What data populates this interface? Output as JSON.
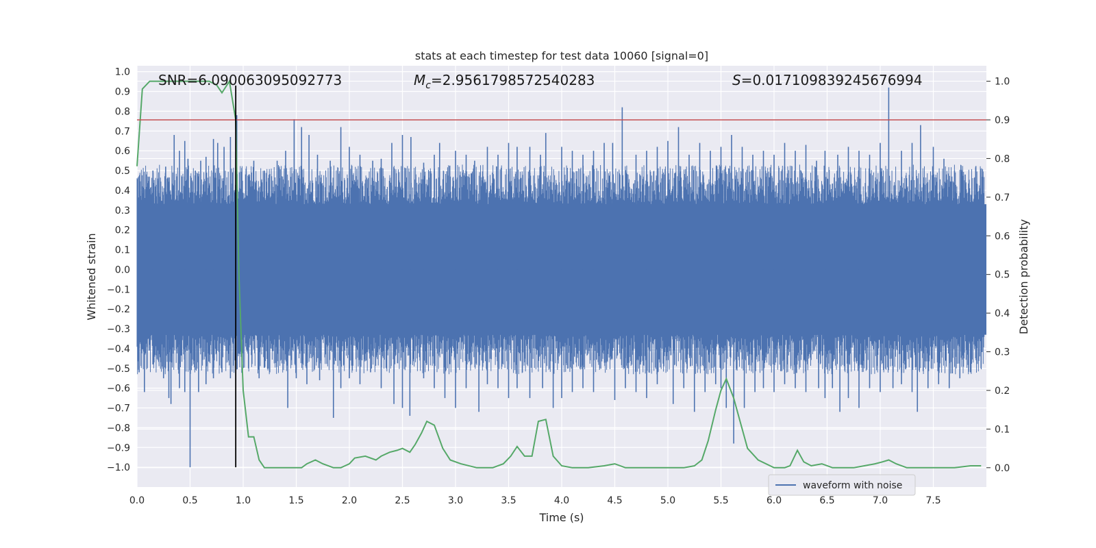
{
  "chart_data": {
    "type": "line",
    "title": "stats at each timestep for test data 10060 [signal=0]",
    "xlabel": "Time (s)",
    "ylabel_left": "Whitened strain",
    "ylabel_right": "Detection probability",
    "xlim": [
      0.0,
      8.0
    ],
    "ylim_left": [
      -1.1,
      1.03
    ],
    "ylim_right": [
      -0.05,
      1.04
    ],
    "x_ticks": [
      0.0,
      0.5,
      1.0,
      1.5,
      2.0,
      2.5,
      3.0,
      3.5,
      4.0,
      4.5,
      5.0,
      5.5,
      6.0,
      6.5,
      7.0,
      7.5
    ],
    "x_tick_labels": [
      "0.0",
      "0.5",
      "1.0",
      "1.5",
      "2.0",
      "2.5",
      "3.0",
      "3.5",
      "4.0",
      "4.5",
      "5.0",
      "5.5",
      "6.0",
      "6.5",
      "7.0",
      "7.5"
    ],
    "y_left_ticks": [
      1.0,
      0.9,
      0.8,
      0.7,
      0.6,
      0.5,
      0.4,
      0.3,
      0.2,
      0.1,
      0.0,
      -0.1,
      -0.2,
      -0.3,
      -0.4,
      -0.5,
      -0.6,
      -0.7,
      -0.8,
      -0.9,
      -1.0
    ],
    "y_left_tick_labels": [
      "1.0",
      "0.9",
      "0.8",
      "0.7",
      "0.6",
      "0.5",
      "0.4",
      "0.3",
      "0.2",
      "0.1",
      "0.0",
      "−0.1",
      "−0.2",
      "−0.3",
      "−0.4",
      "−0.5",
      "−0.6",
      "−0.7",
      "−0.8",
      "−0.9",
      "−1.0"
    ],
    "y_right_ticks": [
      1.0,
      0.9,
      0.8,
      0.7,
      0.6,
      0.5,
      0.4,
      0.3,
      0.2,
      0.1,
      0.0
    ],
    "y_right_tick_labels": [
      "1.0",
      "0.9",
      "0.8",
      "0.7",
      "0.6",
      "0.5",
      "0.4",
      "0.3",
      "0.2",
      "0.1",
      "0.0"
    ],
    "grid": true,
    "annotations": {
      "snr": "SNR=6.090063095092773",
      "mc_symbol": "M",
      "mc_sub": "c",
      "mc_value": "=2.9561798572540283",
      "s_symbol": "S",
      "s_value": "=0.017109839245676994"
    },
    "threshold_line": {
      "y_right": 0.9,
      "color": "#c44e52"
    },
    "event_marker": {
      "x": 0.93,
      "y_range": [
        -1.0,
        0.93
      ],
      "color": "#000000"
    },
    "legend": {
      "entries": [
        "waveform with noise"
      ],
      "placement": "lower-right"
    },
    "series": [
      {
        "name": "waveform with noise",
        "axis": "left",
        "color": "#4c72b0",
        "style": "noise",
        "band_upper": 0.33,
        "band_lower": -0.33,
        "spikes_up": [
          [
            0.05,
            0.42
          ],
          [
            0.15,
            0.5
          ],
          [
            0.2,
            0.45
          ],
          [
            0.27,
            0.52
          ],
          [
            0.35,
            0.68
          ],
          [
            0.4,
            0.6
          ],
          [
            0.45,
            0.65
          ],
          [
            0.48,
            0.56
          ],
          [
            0.55,
            0.5
          ],
          [
            0.6,
            0.55
          ],
          [
            0.65,
            0.57
          ],
          [
            0.72,
            0.66
          ],
          [
            0.76,
            0.64
          ],
          [
            0.82,
            0.62
          ],
          [
            0.88,
            0.67
          ],
          [
            0.94,
            0.78
          ],
          [
            1.1,
            0.55
          ],
          [
            1.2,
            0.5
          ],
          [
            1.32,
            0.55
          ],
          [
            1.4,
            0.6
          ],
          [
            1.48,
            0.76
          ],
          [
            1.55,
            0.72
          ],
          [
            1.62,
            0.68
          ],
          [
            1.7,
            0.58
          ],
          [
            1.82,
            0.55
          ],
          [
            1.92,
            0.72
          ],
          [
            2.0,
            0.62
          ],
          [
            2.1,
            0.58
          ],
          [
            2.22,
            0.55
          ],
          [
            2.3,
            0.56
          ],
          [
            2.4,
            0.64
          ],
          [
            2.5,
            0.68
          ],
          [
            2.58,
            0.67
          ],
          [
            2.7,
            0.54
          ],
          [
            2.8,
            0.58
          ],
          [
            2.85,
            0.64
          ],
          [
            3.0,
            0.6
          ],
          [
            3.1,
            0.58
          ],
          [
            3.18,
            0.55
          ],
          [
            3.3,
            0.62
          ],
          [
            3.4,
            0.58
          ],
          [
            3.5,
            0.64
          ],
          [
            3.58,
            0.62
          ],
          [
            3.7,
            0.62
          ],
          [
            3.8,
            0.58
          ],
          [
            3.85,
            0.69
          ],
          [
            4.0,
            0.62
          ],
          [
            4.1,
            0.6
          ],
          [
            4.2,
            0.58
          ],
          [
            4.3,
            0.6
          ],
          [
            4.4,
            0.64
          ],
          [
            4.48,
            0.64
          ],
          [
            4.57,
            0.82
          ],
          [
            4.7,
            0.58
          ],
          [
            4.8,
            0.6
          ],
          [
            4.9,
            0.62
          ],
          [
            5.0,
            0.65
          ],
          [
            5.1,
            0.72
          ],
          [
            5.2,
            0.58
          ],
          [
            5.3,
            0.64
          ],
          [
            5.4,
            0.6
          ],
          [
            5.5,
            0.62
          ],
          [
            5.6,
            0.68
          ],
          [
            5.7,
            0.62
          ],
          [
            5.8,
            0.58
          ],
          [
            5.9,
            0.6
          ],
          [
            6.0,
            0.58
          ],
          [
            6.1,
            0.64
          ],
          [
            6.2,
            0.6
          ],
          [
            6.3,
            0.63
          ],
          [
            6.4,
            0.55
          ],
          [
            6.48,
            0.6
          ],
          [
            6.6,
            0.58
          ],
          [
            6.7,
            0.62
          ],
          [
            6.8,
            0.6
          ],
          [
            6.9,
            0.58
          ],
          [
            7.0,
            0.64
          ],
          [
            7.08,
            0.92
          ],
          [
            7.2,
            0.6
          ],
          [
            7.3,
            0.64
          ],
          [
            7.38,
            0.73
          ],
          [
            7.5,
            0.62
          ],
          [
            7.6,
            0.56
          ],
          [
            7.7,
            0.5
          ],
          [
            7.8,
            0.48
          ],
          [
            7.9,
            0.52
          ]
        ],
        "spikes_down": [
          [
            0.02,
            -0.52
          ],
          [
            0.07,
            -0.62
          ],
          [
            0.15,
            -0.48
          ],
          [
            0.25,
            -0.55
          ],
          [
            0.3,
            -0.65
          ],
          [
            0.32,
            -0.68
          ],
          [
            0.4,
            -0.6
          ],
          [
            0.45,
            -0.62
          ],
          [
            0.5,
            -1.0
          ],
          [
            0.58,
            -0.62
          ],
          [
            0.65,
            -0.58
          ],
          [
            0.72,
            -0.55
          ],
          [
            0.8,
            -0.52
          ],
          [
            0.88,
            -0.55
          ],
          [
            0.95,
            -0.42
          ],
          [
            1.05,
            -0.5
          ],
          [
            1.15,
            -0.55
          ],
          [
            1.25,
            -0.52
          ],
          [
            1.42,
            -0.7
          ],
          [
            1.5,
            -0.55
          ],
          [
            1.6,
            -0.58
          ],
          [
            1.72,
            -0.56
          ],
          [
            1.85,
            -0.75
          ],
          [
            1.92,
            -0.6
          ],
          [
            2.0,
            -0.55
          ],
          [
            2.1,
            -0.58
          ],
          [
            2.2,
            -0.52
          ],
          [
            2.3,
            -0.6
          ],
          [
            2.42,
            -0.68
          ],
          [
            2.5,
            -0.7
          ],
          [
            2.57,
            -0.74
          ],
          [
            2.7,
            -0.55
          ],
          [
            2.8,
            -0.6
          ],
          [
            2.9,
            -0.65
          ],
          [
            3.0,
            -0.7
          ],
          [
            3.1,
            -0.6
          ],
          [
            3.22,
            -0.72
          ],
          [
            3.3,
            -0.58
          ],
          [
            3.4,
            -0.6
          ],
          [
            3.5,
            -0.65
          ],
          [
            3.58,
            -0.6
          ],
          [
            3.7,
            -0.65
          ],
          [
            3.82,
            -0.6
          ],
          [
            3.92,
            -0.7
          ],
          [
            4.0,
            -0.65
          ],
          [
            4.1,
            -0.62
          ],
          [
            4.2,
            -0.6
          ],
          [
            4.3,
            -0.62
          ],
          [
            4.5,
            -0.66
          ],
          [
            4.6,
            -0.6
          ],
          [
            4.7,
            -0.62
          ],
          [
            4.8,
            -0.65
          ],
          [
            4.9,
            -0.58
          ],
          [
            5.05,
            -0.68
          ],
          [
            5.15,
            -0.6
          ],
          [
            5.25,
            -0.72
          ],
          [
            5.35,
            -0.62
          ],
          [
            5.45,
            -0.58
          ],
          [
            5.5,
            -0.6
          ],
          [
            5.55,
            -0.7
          ],
          [
            5.62,
            -0.88
          ],
          [
            5.72,
            -0.7
          ],
          [
            5.82,
            -0.62
          ],
          [
            5.9,
            -0.6
          ],
          [
            6.0,
            -0.62
          ],
          [
            6.1,
            -0.58
          ],
          [
            6.2,
            -0.6
          ],
          [
            6.3,
            -0.62
          ],
          [
            6.42,
            -0.6
          ],
          [
            6.48,
            -0.65
          ],
          [
            6.55,
            -0.6
          ],
          [
            6.62,
            -0.72
          ],
          [
            6.7,
            -0.65
          ],
          [
            6.8,
            -0.7
          ],
          [
            6.9,
            -0.6
          ],
          [
            7.0,
            -0.62
          ],
          [
            7.12,
            -0.6
          ],
          [
            7.2,
            -0.58
          ],
          [
            7.3,
            -0.62
          ],
          [
            7.35,
            -0.72
          ],
          [
            7.45,
            -0.6
          ],
          [
            7.55,
            -0.58
          ],
          [
            7.65,
            -0.6
          ],
          [
            7.75,
            -0.55
          ],
          [
            7.85,
            -0.52
          ],
          [
            7.95,
            -0.5
          ]
        ]
      },
      {
        "name": "",
        "axis": "right",
        "color": "#55a868",
        "x": [
          0.0,
          0.05,
          0.12,
          0.2,
          0.3,
          0.4,
          0.5,
          0.6,
          0.68,
          0.75,
          0.8,
          0.87,
          0.93,
          0.96,
          1.0,
          1.05,
          1.1,
          1.15,
          1.2,
          1.27,
          1.35,
          1.45,
          1.55,
          1.6,
          1.68,
          1.75,
          1.85,
          1.92,
          2.0,
          2.05,
          2.15,
          2.25,
          2.3,
          2.38,
          2.45,
          2.5,
          2.57,
          2.62,
          2.68,
          2.73,
          2.8,
          2.88,
          2.95,
          3.05,
          3.2,
          3.35,
          3.45,
          3.52,
          3.58,
          3.65,
          3.72,
          3.78,
          3.85,
          3.92,
          4.0,
          4.1,
          4.25,
          4.4,
          4.5,
          4.6,
          4.7,
          4.85,
          5.0,
          5.15,
          5.25,
          5.32,
          5.38,
          5.45,
          5.5,
          5.55,
          5.62,
          5.68,
          5.75,
          5.85,
          6.0,
          6.1,
          6.15,
          6.22,
          6.28,
          6.35,
          6.45,
          6.55,
          6.65,
          6.75,
          6.85,
          6.95,
          7.02,
          7.08,
          7.15,
          7.25,
          7.4,
          7.55,
          7.7,
          7.85,
          7.95
        ],
        "y": [
          0.78,
          0.98,
          1.0,
          1.0,
          1.0,
          1.0,
          1.0,
          1.0,
          1.0,
          0.99,
          0.97,
          1.0,
          0.9,
          0.5,
          0.2,
          0.08,
          0.08,
          0.02,
          0.0,
          0.0,
          0.0,
          0.0,
          0.0,
          0.01,
          0.02,
          0.01,
          0.0,
          0.0,
          0.01,
          0.025,
          0.03,
          0.02,
          0.03,
          0.04,
          0.045,
          0.05,
          0.04,
          0.06,
          0.09,
          0.12,
          0.11,
          0.05,
          0.02,
          0.01,
          0.0,
          0.0,
          0.01,
          0.03,
          0.055,
          0.03,
          0.03,
          0.12,
          0.125,
          0.03,
          0.005,
          0.0,
          0.0,
          0.005,
          0.01,
          0.0,
          0.0,
          0.0,
          0.0,
          0.0,
          0.005,
          0.02,
          0.07,
          0.15,
          0.2,
          0.23,
          0.18,
          0.12,
          0.05,
          0.02,
          0.0,
          0.0,
          0.005,
          0.045,
          0.015,
          0.005,
          0.01,
          0.0,
          0.0,
          0.0,
          0.005,
          0.01,
          0.015,
          0.02,
          0.01,
          0.0,
          0.0,
          0.0,
          0.0,
          0.005,
          0.005
        ]
      }
    ]
  }
}
